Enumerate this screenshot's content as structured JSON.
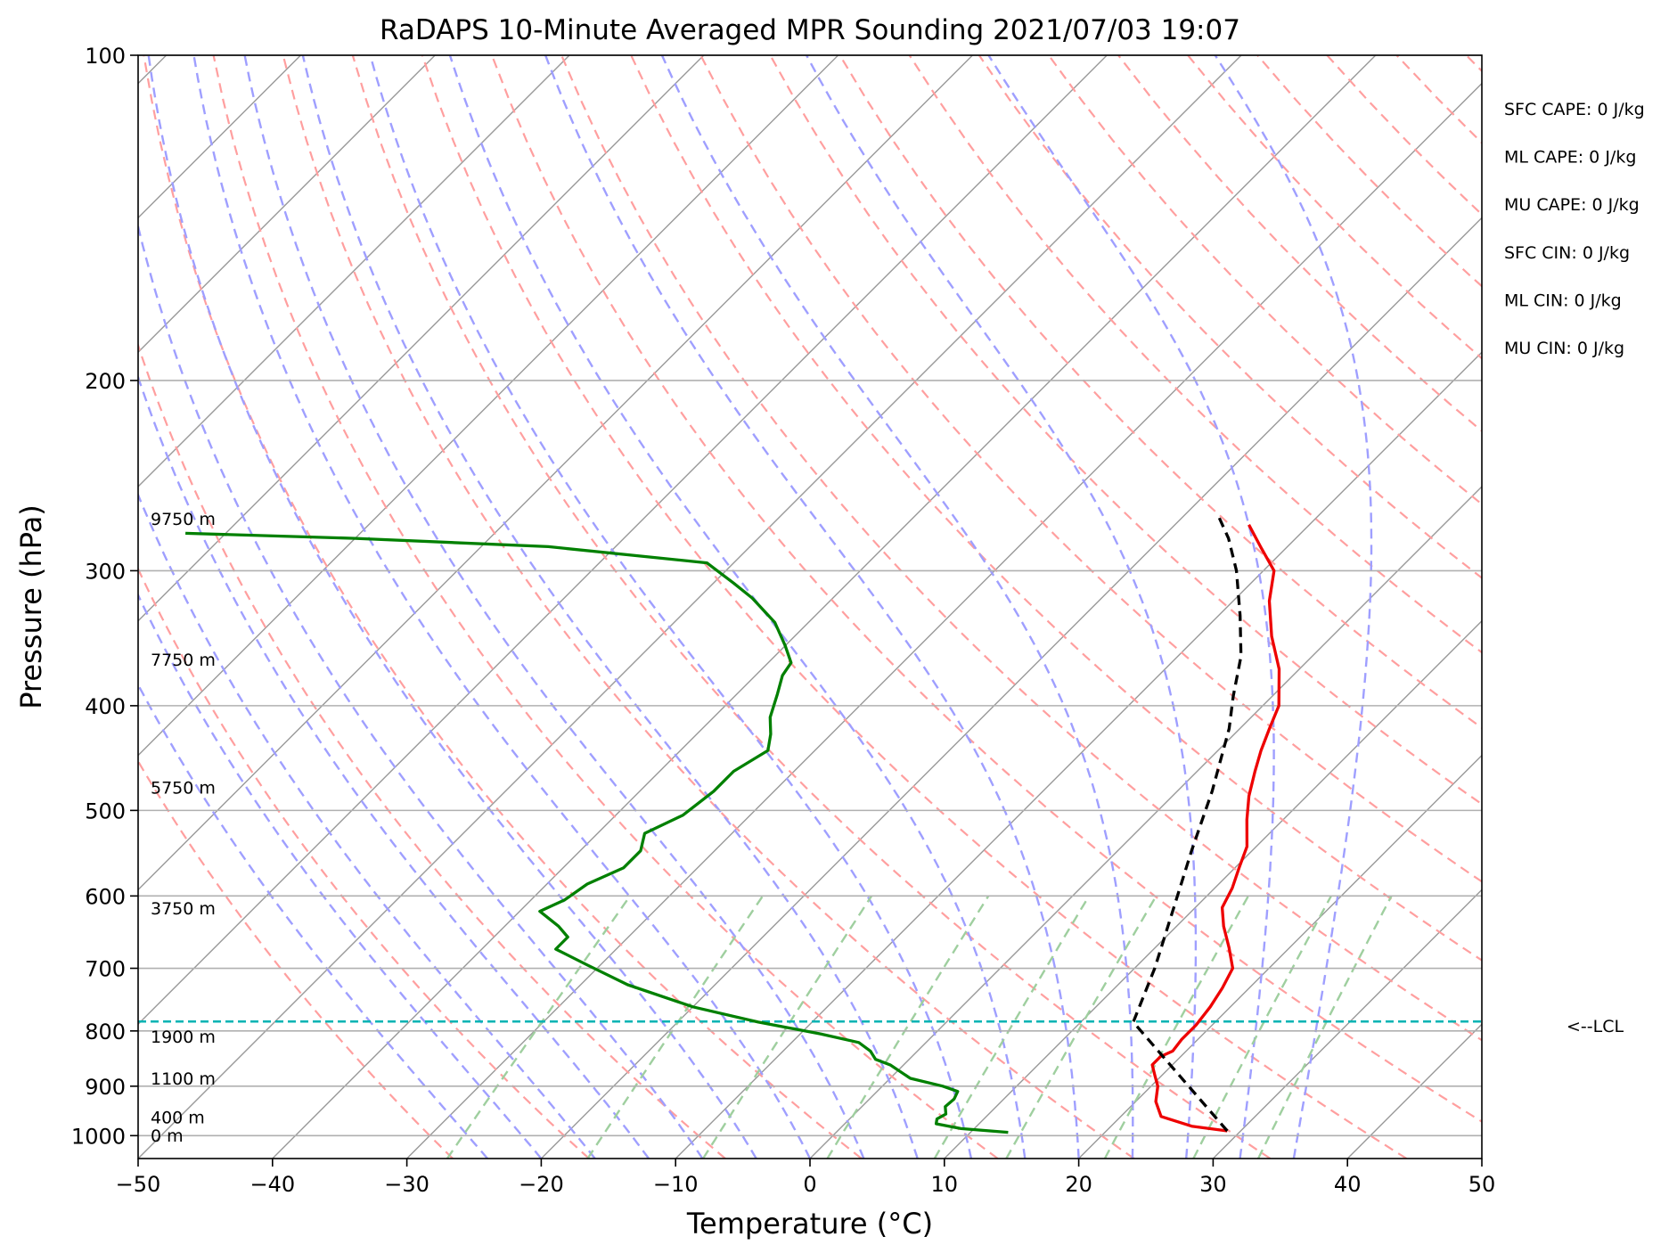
{
  "chart_data": {
    "type": "line",
    "subtype": "skew-t log-p sounding",
    "title": "RaDAPS 10-Minute Averaged MPR Sounding 2021/07/03 19:07",
    "xlabel": "Temperature (°C)",
    "ylabel": "Pressure (hPa)",
    "xlim": [
      -50,
      50
    ],
    "ylim": [
      1050,
      100
    ],
    "y_scale": "log",
    "grid": true,
    "x_ticks": [
      "−50",
      "−40",
      "−30",
      "−20",
      "−10",
      "0",
      "10",
      "20",
      "30",
      "40",
      "50"
    ],
    "x_tick_values": [
      -50,
      -40,
      -30,
      -20,
      -10,
      0,
      10,
      20,
      30,
      40,
      50
    ],
    "y_ticks": [
      "100",
      "200",
      "300",
      "400",
      "500",
      "600",
      "700",
      "800",
      "900",
      "1000"
    ],
    "y_tick_values": [
      100,
      200,
      300,
      400,
      500,
      600,
      700,
      800,
      900,
      1000
    ],
    "skew": 45,
    "series": [
      {
        "role": "temperature",
        "color": "#ee0000",
        "points": [
          [
            29,
            990
          ],
          [
            26,
            980
          ],
          [
            23,
            960
          ],
          [
            21.5,
            930
          ],
          [
            20.5,
            900
          ],
          [
            19.5,
            880
          ],
          [
            18.5,
            860
          ],
          [
            18.5,
            845
          ],
          [
            19,
            835
          ],
          [
            18.8,
            815
          ],
          [
            18.8,
            790
          ],
          [
            18.5,
            760
          ],
          [
            18,
            730
          ],
          [
            17.3,
            700
          ],
          [
            15.5,
            670
          ],
          [
            13.5,
            640
          ],
          [
            12,
            615
          ],
          [
            11.3,
            590
          ],
          [
            10.3,
            565
          ],
          [
            9.3,
            540
          ],
          [
            7.3,
            510
          ],
          [
            5.7,
            485
          ],
          [
            4.3,
            460
          ],
          [
            3.2,
            440
          ],
          [
            2.2,
            420
          ],
          [
            1.2,
            400
          ],
          [
            -1.5,
            370
          ],
          [
            -4.5,
            345
          ],
          [
            -7.3,
            320
          ],
          [
            -9.2,
            300
          ],
          [
            -12,
            285
          ],
          [
            -14.5,
            272
          ]
        ]
      },
      {
        "role": "dewpoint",
        "color": "#008000",
        "points": [
          [
            12.8,
            993
          ],
          [
            9,
            985
          ],
          [
            6.8,
            975
          ],
          [
            6.5,
            965
          ],
          [
            6.8,
            955
          ],
          [
            6.2,
            940
          ],
          [
            6.3,
            925
          ],
          [
            6,
            910
          ],
          [
            4.5,
            900
          ],
          [
            1.5,
            885
          ],
          [
            -1,
            860
          ],
          [
            -2.5,
            850
          ],
          [
            -3.5,
            835
          ],
          [
            -5,
            820
          ],
          [
            -8.5,
            805
          ],
          [
            -14,
            785
          ],
          [
            -20,
            760
          ],
          [
            -26.5,
            725
          ],
          [
            -31,
            695
          ],
          [
            -34.5,
            672
          ],
          [
            -34.5,
            655
          ],
          [
            -36,
            640
          ],
          [
            -38.5,
            620
          ],
          [
            -37.5,
            605
          ],
          [
            -37,
            585
          ],
          [
            -35.5,
            565
          ],
          [
            -35.5,
            545
          ],
          [
            -36.5,
            525
          ],
          [
            -35,
            505
          ],
          [
            -34.5,
            480
          ],
          [
            -34.5,
            460
          ],
          [
            -33.5,
            440
          ],
          [
            -34.5,
            425
          ],
          [
            -35.8,
            410
          ],
          [
            -37,
            390
          ],
          [
            -38,
            375
          ],
          [
            -38.3,
            365
          ],
          [
            -40,
            352
          ],
          [
            -42.5,
            335
          ],
          [
            -46,
            318
          ],
          [
            -48.5,
            308
          ],
          [
            -52,
            295
          ],
          [
            -65,
            285
          ],
          [
            -80,
            280
          ],
          [
            -93,
            277
          ]
        ]
      },
      {
        "role": "parcel",
        "color": "#000000",
        "dashed": true,
        "points": [
          [
            29,
            990
          ],
          [
            13.9,
            785
          ],
          [
            11.5,
            700
          ],
          [
            8.4,
            615
          ],
          [
            5.5,
            545
          ],
          [
            2.6,
            480
          ],
          [
            -0.8,
            420
          ],
          [
            -2.9,
            392
          ],
          [
            -5.3,
            360
          ],
          [
            -8.4,
            330
          ],
          [
            -12,
            300
          ],
          [
            -15,
            280
          ],
          [
            -17.6,
            266
          ]
        ]
      }
    ],
    "lcl": {
      "pressure": 784,
      "label": "<--LCL",
      "color": "#00b3b3"
    },
    "height_labels": [
      {
        "pressure": 269,
        "label": "9750 m"
      },
      {
        "pressure": 363,
        "label": "7750 m"
      },
      {
        "pressure": 477,
        "label": "5750 m"
      },
      {
        "pressure": 617,
        "label": "3750 m"
      },
      {
        "pressure": 811,
        "label": "1900 m"
      },
      {
        "pressure": 887,
        "label": "1100 m"
      },
      {
        "pressure": 963,
        "label": "400 m"
      },
      {
        "pressure": 1001,
        "label": "0 m"
      }
    ],
    "indices": [
      "SFC CAPE: 0 J/kg",
      "ML CAPE: 0 J/kg",
      "MU CAPE: 0 J/kg",
      "SFC CIN: 0 J/kg",
      "ML CIN: 0 J/kg",
      "MU CIN: 0 J/kg"
    ],
    "background_lines": {
      "dry_adiabats_color": "#ff9f9f",
      "moist_adiabats_color": "#9f9fff",
      "mixing_ratio_color": "#9fcf9f",
      "isotherm_color": "#999999"
    }
  }
}
